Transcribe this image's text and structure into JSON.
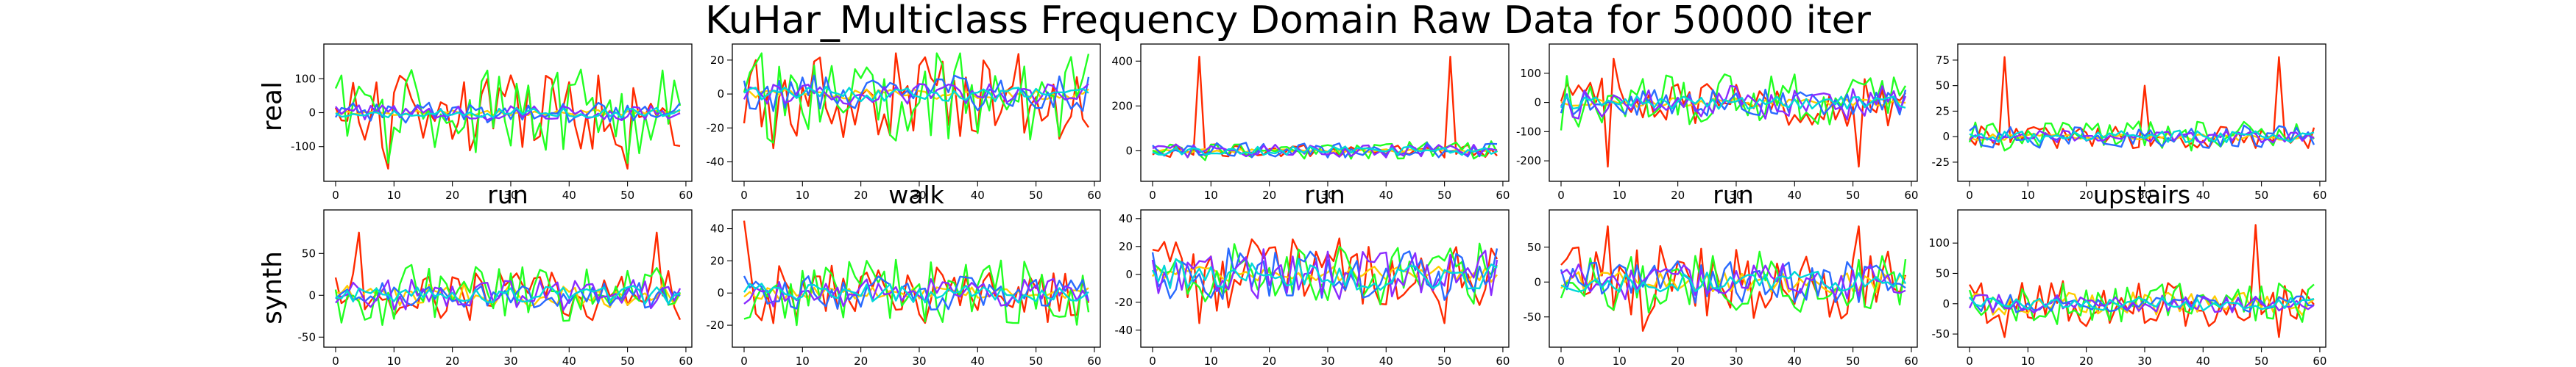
{
  "title": "KuHar_Multiclass Frequency Domain Raw Data for 50000 iter",
  "row_labels": [
    "real",
    "synth"
  ],
  "column_titles": [
    "run",
    "walk",
    "run",
    "run",
    "upstairs"
  ],
  "series_colors": [
    "#ff2a00",
    "#ffcc00",
    "#22ff22",
    "#2a6bff",
    "#8a2bff",
    "#00d8d8"
  ],
  "chart_data": [
    {
      "type": "line",
      "row": "real",
      "col": 0,
      "xlim": [
        0,
        59
      ],
      "ylim": [
        -185,
        185
      ],
      "yticks": [
        -100,
        0,
        100
      ],
      "xticks": [
        0,
        10,
        20,
        30,
        40,
        50,
        60
      ],
      "title": "",
      "amplitudes": [
        150,
        10,
        170,
        40,
        30,
        20
      ],
      "spikes": [
        [
          9,
          -165
        ],
        [
          50,
          -165
        ],
        [
          12,
          95
        ],
        [
          40,
          90
        ]
      ]
    },
    {
      "type": "line",
      "row": "real",
      "col": 1,
      "xlim": [
        0,
        59
      ],
      "ylim": [
        -48,
        26
      ],
      "yticks": [
        -40,
        -20,
        0,
        20
      ],
      "xticks": [
        0,
        10,
        20,
        30,
        40,
        50,
        60
      ],
      "title": "",
      "amplitudes": [
        35,
        4,
        38,
        15,
        8,
        6
      ],
      "spikes": [
        [
          2,
          20
        ],
        [
          5,
          -32
        ]
      ]
    },
    {
      "type": "line",
      "row": "real",
      "col": 2,
      "xlim": [
        0,
        59
      ],
      "ylim": [
        -110,
        450
      ],
      "yticks": [
        -200,
        0,
        200,
        400
      ],
      "xticks": [
        0,
        10,
        20,
        30,
        40,
        50,
        60
      ],
      "title": "",
      "amplitudes": [
        40,
        10,
        60,
        50,
        40,
        25
      ],
      "spikes": [
        [
          8,
          420
        ],
        [
          51,
          420
        ]
      ]
    },
    {
      "type": "line",
      "row": "real",
      "col": 3,
      "xlim": [
        0,
        59
      ],
      "ylim": [
        -250,
        180
      ],
      "yticks": [
        -200,
        -100,
        0,
        100
      ],
      "xticks": [
        0,
        10,
        20,
        30,
        40,
        50,
        60
      ],
      "title": "",
      "amplitudes": [
        110,
        20,
        130,
        60,
        80,
        30
      ],
      "spikes": [
        [
          8,
          -220
        ],
        [
          51,
          -220
        ],
        [
          9,
          150
        ]
      ]
    },
    {
      "type": "line",
      "row": "real",
      "col": 4,
      "xlim": [
        0,
        59
      ],
      "ylim": [
        -38,
        85
      ],
      "yticks": [
        -25,
        0,
        25,
        50,
        75
      ],
      "xticks": [
        0,
        10,
        20,
        30,
        40,
        50,
        60
      ],
      "title": "",
      "amplitudes": [
        15,
        5,
        20,
        15,
        8,
        8
      ],
      "spikes": [
        [
          6,
          78
        ],
        [
          53,
          78
        ],
        [
          30,
          50
        ]
      ]
    },
    {
      "type": "line",
      "row": "synth",
      "col": 0,
      "xlim": [
        0,
        59
      ],
      "ylim": [
        -55,
        95
      ],
      "yticks": [
        -50,
        0,
        50
      ],
      "xticks": [
        0,
        10,
        20,
        30,
        40,
        50,
        60
      ],
      "title": "run",
      "amplitudes": [
        40,
        20,
        50,
        20,
        25,
        15
      ],
      "spikes": [
        [
          4,
          75
        ],
        [
          55,
          75
        ]
      ]
    },
    {
      "type": "line",
      "row": "synth",
      "col": 1,
      "xlim": [
        0,
        59
      ],
      "ylim": [
        -30,
        48
      ],
      "yticks": [
        -20,
        0,
        20,
        40
      ],
      "xticks": [
        0,
        10,
        20,
        30,
        40,
        50,
        60
      ],
      "title": "walk",
      "amplitudes": [
        25,
        5,
        28,
        15,
        12,
        8
      ],
      "spikes": [
        [
          0,
          45
        ]
      ]
    },
    {
      "type": "line",
      "row": "synth",
      "col": 2,
      "xlim": [
        0,
        59
      ],
      "ylim": [
        -48,
        42
      ],
      "yticks": [
        -40,
        -20,
        0,
        20,
        40
      ],
      "xticks": [
        0,
        10,
        20,
        30,
        40,
        50,
        60
      ],
      "title": "run",
      "amplitudes": [
        35,
        8,
        30,
        25,
        25,
        15
      ],
      "spikes": [
        [
          8,
          -35
        ],
        [
          50,
          -35
        ]
      ]
    },
    {
      "type": "line",
      "row": "synth",
      "col": 3,
      "xlim": [
        0,
        59
      ],
      "ylim": [
        -85,
        95
      ],
      "yticks": [
        -50,
        0,
        50
      ],
      "xticks": [
        0,
        10,
        20,
        30,
        40,
        50,
        60
      ],
      "title": "run",
      "amplitudes": [
        70,
        20,
        60,
        40,
        35,
        20
      ],
      "spikes": [
        [
          8,
          80
        ],
        [
          51,
          80
        ],
        [
          14,
          -70
        ]
      ]
    },
    {
      "type": "line",
      "row": "synth",
      "col": 4,
      "xlim": [
        0,
        59
      ],
      "ylim": [
        -62,
        145
      ],
      "yticks": [
        -50,
        0,
        50,
        100
      ],
      "xticks": [
        0,
        10,
        20,
        30,
        40,
        50,
        60
      ],
      "title": "upstairs",
      "amplitudes": [
        50,
        25,
        45,
        20,
        20,
        15
      ],
      "spikes": [
        [
          6,
          -55
        ],
        [
          53,
          -55
        ],
        [
          49,
          130
        ]
      ]
    }
  ]
}
